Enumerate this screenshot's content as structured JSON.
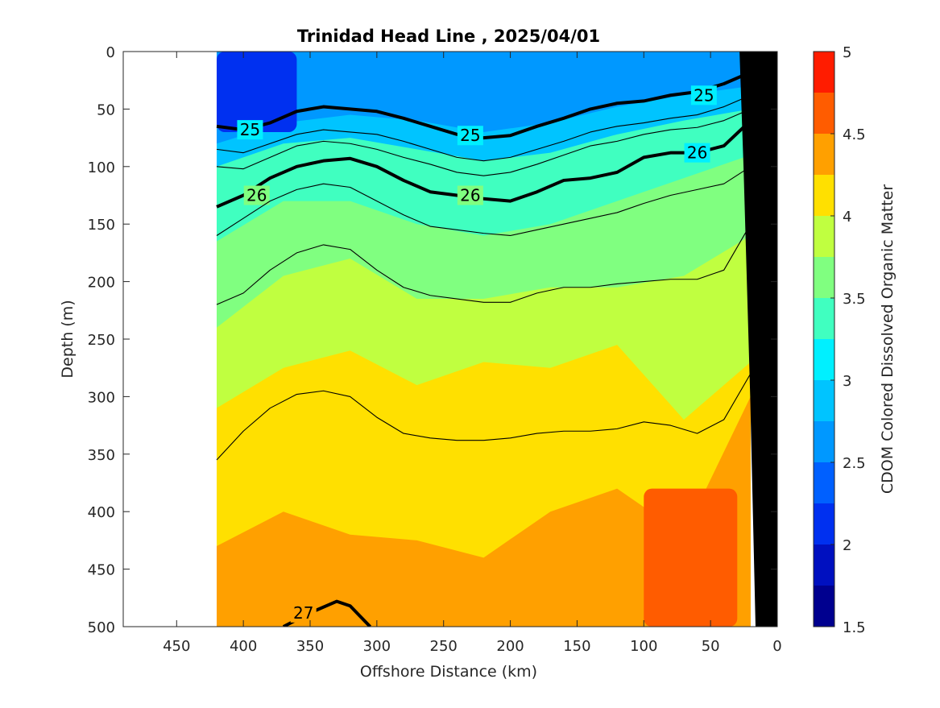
{
  "chart_data": {
    "type": "heatmap",
    "title": "Trinidad Head Line , 2025/04/01",
    "xlabel": "Offshore Distance (km)",
    "ylabel": "Depth (m)",
    "xlim": [
      490,
      0
    ],
    "ylim": [
      0,
      500
    ],
    "x_reversed": true,
    "y_reversed": true,
    "xticks": [
      450,
      400,
      350,
      300,
      250,
      200,
      150,
      100,
      50,
      0
    ],
    "yticks": [
      0,
      50,
      100,
      150,
      200,
      250,
      300,
      350,
      400,
      450,
      500
    ],
    "colorbar": {
      "label": "CDOM Colored Dissolved Organic Matter",
      "min": 1.5,
      "max": 5,
      "ticks": [
        1.5,
        2,
        2.5,
        3,
        3.5,
        4,
        4.5,
        5
      ],
      "levels": [
        1.5,
        1.75,
        2,
        2.25,
        2.5,
        2.75,
        3,
        3.25,
        3.5,
        3.75,
        4,
        4.25,
        4.5,
        4.75,
        5
      ],
      "colors": [
        "#00008f",
        "#0010c0",
        "#0030f0",
        "#0060ff",
        "#0098ff",
        "#00c4ff",
        "#00f0ff",
        "#40ffc0",
        "#80ff80",
        "#c0ff40",
        "#ffe000",
        "#ffa000",
        "#ff5c00",
        "#ff1c00",
        "#c80000"
      ]
    },
    "section_extent_km": [
      420,
      20
    ],
    "cdom_layers": [
      {
        "value": 2.6,
        "depths": [
          0,
          0,
          0,
          0,
          0,
          0,
          0,
          0,
          0
        ]
      },
      {
        "value": 2.9,
        "depths": [
          80,
          62,
          55,
          60,
          70,
          62,
          48,
          38,
          30
        ]
      },
      {
        "value": 3.3,
        "depths": [
          100,
          80,
          75,
          85,
          95,
          88,
          72,
          60,
          50
        ]
      },
      {
        "value": 3.6,
        "depths": [
          165,
          130,
          130,
          150,
          160,
          150,
          130,
          110,
          90
        ]
      },
      {
        "value": 3.9,
        "depths": [
          240,
          195,
          180,
          215,
          215,
          205,
          205,
          195,
          160
        ]
      },
      {
        "value": 4.2,
        "depths": [
          310,
          275,
          260,
          290,
          270,
          275,
          255,
          320,
          270
        ]
      },
      {
        "value": 4.4,
        "depths": [
          430,
          400,
          420,
          425,
          440,
          400,
          380,
          420,
          300
        ]
      }
    ],
    "cdom_layer_x": [
      420,
      370,
      320,
      270,
      220,
      170,
      120,
      70,
      20
    ],
    "low_patch": {
      "value": 2.2,
      "x": [
        420,
        360
      ],
      "depth": [
        0,
        70
      ]
    },
    "high_patch": {
      "value": 4.6,
      "x": [
        100,
        30
      ],
      "depth": [
        380,
        500
      ]
    },
    "isopycnals": [
      {
        "label": "25",
        "bold": true,
        "x": [
          420,
          400,
          380,
          360,
          340,
          320,
          300,
          280,
          260,
          240,
          220,
          200,
          180,
          160,
          140,
          120,
          100,
          80,
          60,
          40,
          20
        ],
        "depth": [
          65,
          68,
          62,
          52,
          48,
          50,
          52,
          58,
          65,
          72,
          75,
          73,
          65,
          58,
          50,
          45,
          43,
          38,
          35,
          28,
          18
        ],
        "label_at": [
          [
            395,
            68
          ],
          [
            230,
            73
          ],
          [
            55,
            38
          ]
        ]
      },
      {
        "label": "26",
        "bold": true,
        "x": [
          420,
          400,
          380,
          360,
          340,
          320,
          300,
          280,
          260,
          240,
          220,
          200,
          180,
          160,
          140,
          120,
          100,
          80,
          60,
          40,
          20
        ],
        "depth": [
          135,
          125,
          110,
          100,
          95,
          93,
          100,
          112,
          122,
          125,
          128,
          130,
          122,
          112,
          110,
          105,
          92,
          88,
          88,
          82,
          60
        ],
        "label_at": [
          [
            390,
            125
          ],
          [
            230,
            125
          ],
          [
            60,
            88
          ]
        ]
      },
      {
        "label": "27",
        "bold": true,
        "x": [
          370,
          350,
          330,
          320,
          305
        ],
        "depth": [
          500,
          488,
          478,
          482,
          500
        ],
        "label_at": [
          [
            355,
            488
          ]
        ]
      },
      {
        "label": "",
        "bold": false,
        "x": [
          420,
          400,
          380,
          360,
          340,
          320,
          300,
          280,
          260,
          240,
          220,
          200,
          180,
          160,
          140,
          120,
          100,
          80,
          60,
          40,
          20
        ],
        "depth": [
          160,
          145,
          130,
          120,
          115,
          118,
          130,
          142,
          152,
          155,
          158,
          160,
          155,
          150,
          145,
          140,
          132,
          125,
          120,
          115,
          100
        ]
      },
      {
        "label": "",
        "bold": false,
        "x": [
          420,
          400,
          380,
          360,
          340,
          320,
          300,
          280,
          260,
          240,
          220,
          200,
          180,
          160,
          140,
          120,
          100,
          80,
          60,
          40,
          20
        ],
        "depth": [
          220,
          210,
          190,
          175,
          168,
          172,
          190,
          205,
          212,
          215,
          218,
          218,
          210,
          205,
          205,
          202,
          200,
          198,
          198,
          190,
          150
        ]
      },
      {
        "label": "",
        "bold": false,
        "x": [
          420,
          400,
          380,
          360,
          340,
          320,
          300,
          280,
          260,
          240,
          220,
          200,
          180,
          160,
          140,
          120,
          100,
          80,
          60,
          40,
          20
        ],
        "depth": [
          355,
          330,
          310,
          298,
          295,
          300,
          318,
          332,
          336,
          338,
          338,
          336,
          332,
          330,
          330,
          328,
          322,
          325,
          332,
          320,
          280
        ]
      },
      {
        "label": "",
        "bold": false,
        "x": [
          420,
          400,
          380,
          360,
          340,
          320,
          300,
          280,
          260,
          240,
          220,
          200,
          180,
          160,
          140,
          120,
          100,
          80,
          60,
          40,
          20
        ],
        "depth": [
          85,
          88,
          80,
          72,
          68,
          70,
          72,
          78,
          85,
          92,
          95,
          92,
          85,
          78,
          70,
          65,
          62,
          58,
          55,
          48,
          38
        ]
      },
      {
        "label": "",
        "bold": false,
        "x": [
          420,
          400,
          380,
          360,
          340,
          320,
          300,
          280,
          260,
          240,
          220,
          200,
          180,
          160,
          140,
          120,
          100,
          80,
          60,
          40,
          20
        ],
        "depth": [
          100,
          102,
          92,
          82,
          78,
          80,
          85,
          92,
          98,
          105,
          108,
          105,
          98,
          90,
          82,
          78,
          72,
          68,
          66,
          60,
          50
        ]
      }
    ],
    "bathymetry": {
      "x": [
        20,
        0,
        0,
        16,
        20,
        25,
        28
      ],
      "depth": [
        0,
        0,
        500,
        500,
        300,
        100,
        0
      ]
    }
  }
}
